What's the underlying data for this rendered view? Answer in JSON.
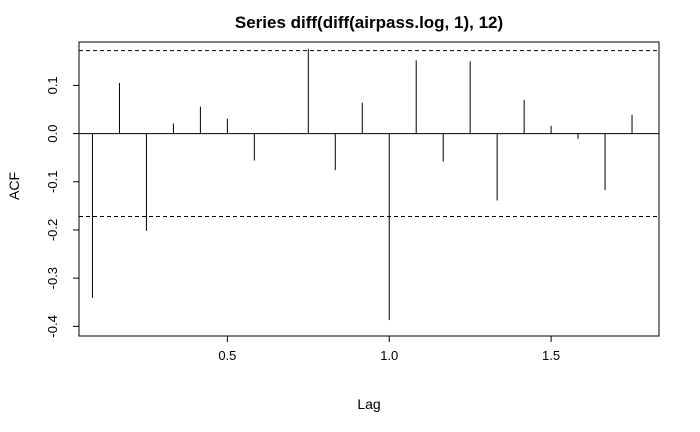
{
  "chart_data": {
    "type": "bar",
    "title": "Series diff(diff(airpass.log, 1), 12)",
    "xlabel": "Lag",
    "ylabel": "ACF",
    "xlim": [
      0.0417,
      1.8333
    ],
    "ylim": [
      -0.42,
      0.19
    ],
    "xticks": [
      0.5,
      1.0,
      1.5
    ],
    "xtick_labels": [
      "0.5",
      "1.0",
      "1.5"
    ],
    "yticks": [
      -0.4,
      -0.3,
      -0.2,
      -0.1,
      0.0,
      0.1
    ],
    "ytick_labels": [
      "-0.4",
      "-0.3",
      "-0.2",
      "-0.1",
      "0.0",
      "0.1"
    ],
    "confidence_bound": 0.172,
    "grid": false,
    "lags": [
      0.0833,
      0.1667,
      0.25,
      0.3333,
      0.4167,
      0.5,
      0.5833,
      0.6667,
      0.75,
      0.8333,
      0.9167,
      1.0,
      1.0833,
      1.1667,
      1.25,
      1.3333,
      1.4167,
      1.5,
      1.5833,
      1.6667,
      1.75
    ],
    "values": [
      -0.341,
      0.105,
      -0.202,
      0.021,
      0.056,
      0.031,
      -0.056,
      0.001,
      0.176,
      -0.076,
      0.064,
      -0.387,
      0.152,
      -0.058,
      0.15,
      -0.139,
      0.07,
      0.016,
      -0.011,
      -0.117,
      0.039
    ]
  }
}
